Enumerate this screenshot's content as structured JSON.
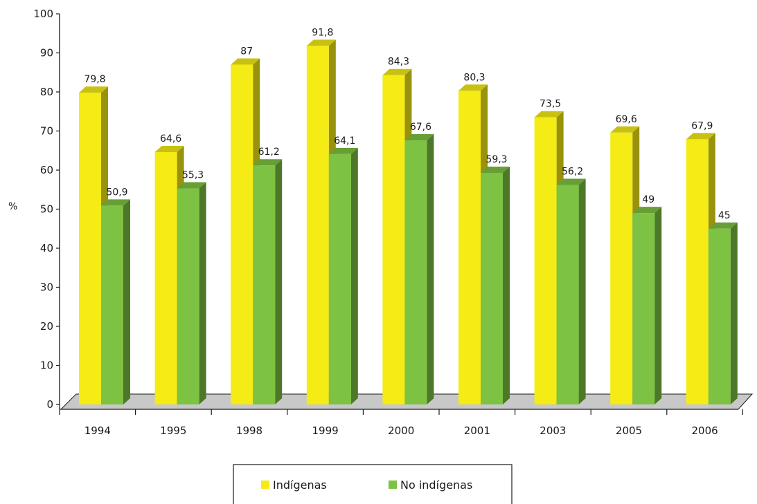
{
  "chart_data": {
    "type": "bar",
    "categories": [
      "1994",
      "1995",
      "1998",
      "1999",
      "2000",
      "2001",
      "2003",
      "2005",
      "2006"
    ],
    "series": [
      {
        "name": "Indígenas",
        "color": "#f5eb15",
        "values": [
          79.8,
          64.6,
          87,
          91.8,
          84.3,
          80.3,
          73.5,
          69.6,
          67.9
        ],
        "labels": [
          "79,8",
          "64,6",
          "87",
          "91,8",
          "84,3",
          "80,3",
          "73,5",
          "69,6",
          "67,9"
        ]
      },
      {
        "name": "No indígenas",
        "color": "#7dc242",
        "values": [
          50.9,
          55.3,
          61.2,
          64.1,
          67.6,
          59.3,
          56.2,
          49,
          45
        ],
        "labels": [
          "50,9",
          "55,3",
          "61,2",
          "64,1",
          "67,6",
          "59,3",
          "56,2",
          "49",
          "45"
        ]
      }
    ],
    "ylabel": "%",
    "ylim": [
      0,
      100
    ],
    "yticks": [
      "0",
      "10",
      "20",
      "30",
      "40",
      "50",
      "60",
      "70",
      "80",
      "90",
      "100"
    ],
    "grid": false,
    "legend_position": "bottom",
    "floor_color": "#c8c8c8"
  }
}
